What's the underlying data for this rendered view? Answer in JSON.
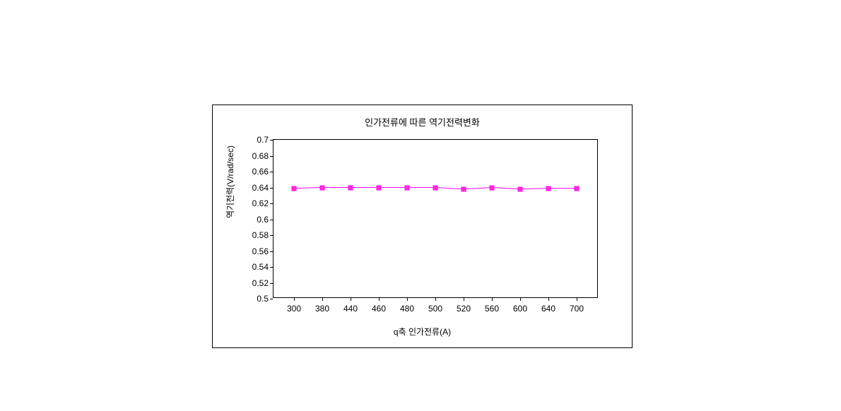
{
  "chart": {
    "type": "line-scatter",
    "title": "인가전류에 따른 역기전력변화",
    "title_fontsize": 13,
    "xlabel": "q축 인가전류(A)",
    "ylabel": "역기전력(V/rad/sec)",
    "label_fontsize": 12,
    "tick_fontsize": 12,
    "background_color": "#ffffff",
    "border_color": "#000000",
    "plot_border_color": "#000000",
    "ylim": [
      0.5,
      0.7
    ],
    "ytick_step": 0.02,
    "yticks": [
      "0.5",
      "0.52",
      "0.54",
      "0.56",
      "0.58",
      "0.6",
      "0.62",
      "0.64",
      "0.66",
      "0.68",
      "0.7"
    ],
    "xlim_display": [
      280,
      720
    ],
    "xticks": [
      300,
      380,
      440,
      460,
      480,
      500,
      520,
      560,
      600,
      640,
      700
    ],
    "line_color": "#ff00ff",
    "marker_fill": "#ff33cc",
    "marker_border": "#ff00ff",
    "marker_style": "square",
    "marker_size": 7,
    "line_width": 1,
    "x_values": [
      300,
      380,
      440,
      460,
      480,
      500,
      520,
      560,
      600,
      640,
      700
    ],
    "y_values": [
      0.639,
      0.64,
      0.64,
      0.64,
      0.64,
      0.64,
      0.638,
      0.64,
      0.638,
      0.639,
      0.639
    ]
  }
}
